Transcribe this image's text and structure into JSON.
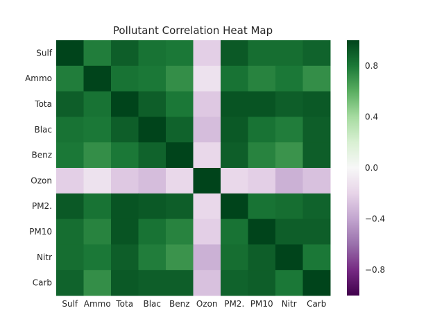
{
  "chart_data": {
    "type": "heatmap",
    "title": "Pollutant Correlation Heat Map",
    "x_labels": [
      "Sulf",
      "Ammo",
      "Tota",
      "Blac",
      "Benz",
      "Ozon",
      "PM2.",
      "PM10",
      "Nitr",
      "Carb"
    ],
    "y_labels": [
      "Sulf",
      "Ammo",
      "Tota",
      "Blac",
      "Benz",
      "Ozon",
      "PM2.",
      "PM10",
      "Nitr",
      "Carb"
    ],
    "values": [
      [
        1.0,
        0.78,
        0.9,
        0.82,
        0.8,
        -0.22,
        0.92,
        0.84,
        0.84,
        0.88
      ],
      [
        0.78,
        1.0,
        0.82,
        0.8,
        0.72,
        -0.12,
        0.82,
        0.76,
        0.8,
        0.72
      ],
      [
        0.9,
        0.82,
        1.0,
        0.9,
        0.8,
        -0.25,
        0.94,
        0.94,
        0.9,
        0.92
      ],
      [
        0.82,
        0.8,
        0.9,
        1.0,
        0.88,
        -0.3,
        0.92,
        0.82,
        0.78,
        0.9
      ],
      [
        0.8,
        0.72,
        0.8,
        0.88,
        1.0,
        -0.18,
        0.9,
        0.76,
        0.7,
        0.9
      ],
      [
        -0.22,
        -0.12,
        -0.25,
        -0.3,
        -0.18,
        1.0,
        -0.18,
        -0.22,
        -0.35,
        -0.28
      ],
      [
        0.92,
        0.82,
        0.94,
        0.92,
        0.9,
        -0.18,
        1.0,
        0.82,
        0.84,
        0.88
      ],
      [
        0.84,
        0.76,
        0.94,
        0.82,
        0.76,
        -0.22,
        0.82,
        1.0,
        0.9,
        0.9
      ],
      [
        0.84,
        0.8,
        0.9,
        0.78,
        0.7,
        -0.35,
        0.84,
        0.9,
        1.0,
        0.8
      ],
      [
        0.88,
        0.72,
        0.92,
        0.9,
        0.9,
        -0.28,
        0.88,
        0.9,
        0.8,
        1.0
      ]
    ],
    "colorbar": {
      "vmin": -1.0,
      "vmax": 1.0,
      "ticks": [
        -0.8,
        -0.4,
        0.0,
        0.4,
        0.8
      ],
      "tick_labels": [
        "−0.8",
        "−0.4",
        "0.0",
        "0.4",
        "0.8"
      ],
      "colormap": "PRGn"
    },
    "grid": false
  }
}
